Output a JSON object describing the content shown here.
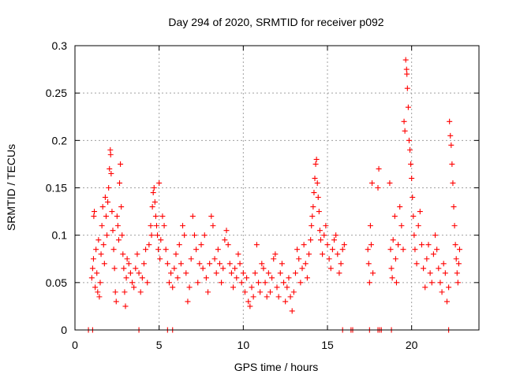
{
  "chart_data": {
    "type": "scatter",
    "title": "Day 294 of 2020, SRMTID for receiver p092",
    "xlabel": "GPS time / hours",
    "ylabel": "SRMTID / TECUs",
    "xlim": [
      0,
      24
    ],
    "ylim": [
      0,
      0.3
    ],
    "xticks": [
      0,
      5,
      10,
      15,
      20
    ],
    "xtick_labels": [
      "0",
      "5",
      "10",
      "15",
      "20"
    ],
    "yticks": [
      0,
      0.05,
      0.1,
      0.15,
      0.2,
      0.25,
      0.3
    ],
    "ytick_labels": [
      "0",
      "0.05",
      "0.1",
      "0.15",
      "0.2",
      "0.25",
      "0.3"
    ],
    "grid": true,
    "marker": "plus",
    "color": "#ff0000",
    "series": [
      {
        "name": "SRMTID",
        "points": [
          [
            1.0,
            0.055
          ],
          [
            1.05,
            0.065
          ],
          [
            1.1,
            0.075
          ],
          [
            1.12,
            0.12
          ],
          [
            1.15,
            0.125
          ],
          [
            1.2,
            0.045
          ],
          [
            1.25,
            0.085
          ],
          [
            1.3,
            0.06
          ],
          [
            1.35,
            0.04
          ],
          [
            1.4,
            0.095
          ],
          [
            1.45,
            0.035
          ],
          [
            1.5,
            0.05
          ],
          [
            1.55,
            0.08
          ],
          [
            1.6,
            0.11
          ],
          [
            1.65,
            0.13
          ],
          [
            1.7,
            0.09
          ],
          [
            1.75,
            0.07
          ],
          [
            1.8,
            0.14
          ],
          [
            1.85,
            0.12
          ],
          [
            1.9,
            0.1
          ],
          [
            1.95,
            0.135
          ],
          [
            2.0,
            0.15
          ],
          [
            2.05,
            0.17
          ],
          [
            2.1,
            0.19
          ],
          [
            2.12,
            0.185
          ],
          [
            2.15,
            0.165
          ],
          [
            2.2,
            0.125
          ],
          [
            2.25,
            0.105
          ],
          [
            2.3,
            0.085
          ],
          [
            2.35,
            0.065
          ],
          [
            2.4,
            0.04
          ],
          [
            2.45,
            0.03
          ],
          [
            2.5,
            0.12
          ],
          [
            2.55,
            0.11
          ],
          [
            2.6,
            0.095
          ],
          [
            2.65,
            0.155
          ],
          [
            2.7,
            0.175
          ],
          [
            2.75,
            0.13
          ],
          [
            2.8,
            0.1
          ],
          [
            2.85,
            0.08
          ],
          [
            2.9,
            0.065
          ],
          [
            2.95,
            0.04
          ],
          [
            3.0,
            0.025
          ],
          [
            3.05,
            0.055
          ],
          [
            3.1,
            0.075
          ],
          [
            3.2,
            0.07
          ],
          [
            3.3,
            0.06
          ],
          [
            3.4,
            0.05
          ],
          [
            3.5,
            0.045
          ],
          [
            3.6,
            0.065
          ],
          [
            3.7,
            0.08
          ],
          [
            3.8,
            0.06
          ],
          [
            3.9,
            0.04
          ],
          [
            4.0,
            0.055
          ],
          [
            4.1,
            0.07
          ],
          [
            4.2,
            0.085
          ],
          [
            4.3,
            0.05
          ],
          [
            4.4,
            0.09
          ],
          [
            4.5,
            0.11
          ],
          [
            4.55,
            0.1
          ],
          [
            4.6,
            0.13
          ],
          [
            4.65,
            0.145
          ],
          [
            4.7,
            0.15
          ],
          [
            4.75,
            0.135
          ],
          [
            4.8,
            0.12
          ],
          [
            4.85,
            0.11
          ],
          [
            4.9,
            0.1
          ],
          [
            4.95,
            0.085
          ],
          [
            5.0,
            0.155
          ],
          [
            5.05,
            0.075
          ],
          [
            5.1,
            0.095
          ],
          [
            5.2,
            0.12
          ],
          [
            5.3,
            0.11
          ],
          [
            5.4,
            0.085
          ],
          [
            5.5,
            0.07
          ],
          [
            5.6,
            0.05
          ],
          [
            5.7,
            0.06
          ],
          [
            5.8,
            0.045
          ],
          [
            5.9,
            0.065
          ],
          [
            6.0,
            0.08
          ],
          [
            6.1,
            0.055
          ],
          [
            6.2,
            0.09
          ],
          [
            6.3,
            0.07
          ],
          [
            6.4,
            0.11
          ],
          [
            6.5,
            0.1
          ],
          [
            6.6,
            0.06
          ],
          [
            6.7,
            0.03
          ],
          [
            6.8,
            0.045
          ],
          [
            6.9,
            0.075
          ],
          [
            7.0,
            0.12
          ],
          [
            7.1,
            0.1
          ],
          [
            7.2,
            0.085
          ],
          [
            7.3,
            0.05
          ],
          [
            7.4,
            0.07
          ],
          [
            7.5,
            0.09
          ],
          [
            7.6,
            0.065
          ],
          [
            7.7,
            0.1
          ],
          [
            7.8,
            0.055
          ],
          [
            7.9,
            0.04
          ],
          [
            8.0,
            0.07
          ],
          [
            8.1,
            0.12
          ],
          [
            8.2,
            0.11
          ],
          [
            8.3,
            0.075
          ],
          [
            8.4,
            0.06
          ],
          [
            8.5,
            0.085
          ],
          [
            8.6,
            0.07
          ],
          [
            8.7,
            0.05
          ],
          [
            8.8,
            0.065
          ],
          [
            8.9,
            0.095
          ],
          [
            9.0,
            0.105
          ],
          [
            9.1,
            0.09
          ],
          [
            9.2,
            0.07
          ],
          [
            9.3,
            0.06
          ],
          [
            9.4,
            0.045
          ],
          [
            9.5,
            0.065
          ],
          [
            9.6,
            0.055
          ],
          [
            9.7,
            0.08
          ],
          [
            9.8,
            0.07
          ],
          [
            9.9,
            0.05
          ],
          [
            10.0,
            0.06
          ],
          [
            10.1,
            0.04
          ],
          [
            10.2,
            0.055
          ],
          [
            10.3,
            0.03
          ],
          [
            10.4,
            0.025
          ],
          [
            10.5,
            0.045
          ],
          [
            10.6,
            0.035
          ],
          [
            10.7,
            0.06
          ],
          [
            10.8,
            0.09
          ],
          [
            10.9,
            0.05
          ],
          [
            11.0,
            0.04
          ],
          [
            11.1,
            0.07
          ],
          [
            11.2,
            0.065
          ],
          [
            11.3,
            0.05
          ],
          [
            11.4,
            0.035
          ],
          [
            11.5,
            0.06
          ],
          [
            11.6,
            0.04
          ],
          [
            11.7,
            0.055
          ],
          [
            11.8,
            0.075
          ],
          [
            11.9,
            0.08
          ],
          [
            12.0,
            0.045
          ],
          [
            12.1,
            0.035
          ],
          [
            12.2,
            0.06
          ],
          [
            12.3,
            0.07
          ],
          [
            12.4,
            0.05
          ],
          [
            12.5,
            0.03
          ],
          [
            12.6,
            0.045
          ],
          [
            12.7,
            0.055
          ],
          [
            12.8,
            0.035
          ],
          [
            12.9,
            0.02
          ],
          [
            13.0,
            0.04
          ],
          [
            13.1,
            0.06
          ],
          [
            13.2,
            0.085
          ],
          [
            13.3,
            0.075
          ],
          [
            13.4,
            0.05
          ],
          [
            13.5,
            0.065
          ],
          [
            13.6,
            0.09
          ],
          [
            13.7,
            0.07
          ],
          [
            13.8,
            0.055
          ],
          [
            13.9,
            0.08
          ],
          [
            14.0,
            0.095
          ],
          [
            14.05,
            0.11
          ],
          [
            14.1,
            0.12
          ],
          [
            14.15,
            0.13
          ],
          [
            14.2,
            0.145
          ],
          [
            14.25,
            0.16
          ],
          [
            14.3,
            0.175
          ],
          [
            14.35,
            0.18
          ],
          [
            14.4,
            0.155
          ],
          [
            14.45,
            0.14
          ],
          [
            14.5,
            0.125
          ],
          [
            14.55,
            0.105
          ],
          [
            14.6,
            0.095
          ],
          [
            14.7,
            0.08
          ],
          [
            14.8,
            0.1
          ],
          [
            14.9,
            0.11
          ],
          [
            15.0,
            0.09
          ],
          [
            15.1,
            0.075
          ],
          [
            15.2,
            0.065
          ],
          [
            15.3,
            0.085
          ],
          [
            15.4,
            0.095
          ],
          [
            15.5,
            0.1
          ],
          [
            15.6,
            0.08
          ],
          [
            15.7,
            0.06
          ],
          [
            15.8,
            0.07
          ],
          [
            15.9,
            0.085
          ],
          [
            16.0,
            0.09
          ],
          [
            17.4,
            0.085
          ],
          [
            17.45,
            0.07
          ],
          [
            17.5,
            0.05
          ],
          [
            17.55,
            0.11
          ],
          [
            17.6,
            0.09
          ],
          [
            17.65,
            0.155
          ],
          [
            17.7,
            0.06
          ],
          [
            18.0,
            0.15
          ],
          [
            18.05,
            0.17
          ],
          [
            18.7,
            0.155
          ],
          [
            18.75,
            0.085
          ],
          [
            18.8,
            0.065
          ],
          [
            18.85,
            0.055
          ],
          [
            18.9,
            0.095
          ],
          [
            19.0,
            0.12
          ],
          [
            19.05,
            0.075
          ],
          [
            19.1,
            0.05
          ],
          [
            19.2,
            0.09
          ],
          [
            19.3,
            0.13
          ],
          [
            19.4,
            0.11
          ],
          [
            19.5,
            0.085
          ],
          [
            19.55,
            0.22
          ],
          [
            19.6,
            0.21
          ],
          [
            19.65,
            0.285
          ],
          [
            19.7,
            0.275
          ],
          [
            19.72,
            0.27
          ],
          [
            19.75,
            0.255
          ],
          [
            19.8,
            0.235
          ],
          [
            19.85,
            0.2
          ],
          [
            19.9,
            0.19
          ],
          [
            19.95,
            0.175
          ],
          [
            20.0,
            0.16
          ],
          [
            20.05,
            0.14
          ],
          [
            20.1,
            0.12
          ],
          [
            20.15,
            0.1
          ],
          [
            20.2,
            0.085
          ],
          [
            20.3,
            0.07
          ],
          [
            20.4,
            0.11
          ],
          [
            20.5,
            0.125
          ],
          [
            20.6,
            0.09
          ],
          [
            20.7,
            0.065
          ],
          [
            20.8,
            0.045
          ],
          [
            20.9,
            0.075
          ],
          [
            21.0,
            0.09
          ],
          [
            21.1,
            0.06
          ],
          [
            21.2,
            0.05
          ],
          [
            21.3,
            0.08
          ],
          [
            21.4,
            0.1
          ],
          [
            21.5,
            0.085
          ],
          [
            21.6,
            0.065
          ],
          [
            21.7,
            0.05
          ],
          [
            21.8,
            0.04
          ],
          [
            21.9,
            0.07
          ],
          [
            22.0,
            0.06
          ],
          [
            22.1,
            0.03
          ],
          [
            22.2,
            0.045
          ],
          [
            22.25,
            0.22
          ],
          [
            22.3,
            0.205
          ],
          [
            22.35,
            0.195
          ],
          [
            22.4,
            0.175
          ],
          [
            22.45,
            0.155
          ],
          [
            22.5,
            0.13
          ],
          [
            22.55,
            0.11
          ],
          [
            22.6,
            0.09
          ],
          [
            22.65,
            0.075
          ],
          [
            22.7,
            0.06
          ],
          [
            22.75,
            0.05
          ],
          [
            22.8,
            0.07
          ],
          [
            22.85,
            0.085
          ]
        ],
        "zero_points_x": [
          0.8,
          1.05,
          3.8,
          5.5,
          5.8,
          15.9,
          16.4,
          16.5,
          17.5,
          18.0,
          18.1,
          18.2,
          18.8,
          22.2
        ]
      }
    ]
  }
}
